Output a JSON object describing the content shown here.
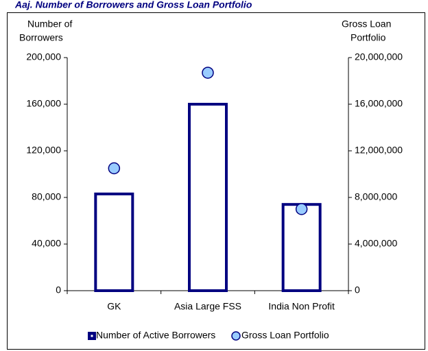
{
  "chart_data": {
    "type": "bar",
    "title": "Aaj. Number of Borrowers and Gross Loan Portfolio",
    "y_label": [
      "Number of",
      "Borrowers"
    ],
    "y2_label": [
      "Gross Loan",
      "Portfolio"
    ],
    "categories": [
      "GK",
      "Asia Large FSS",
      "India Non Profit"
    ],
    "series": [
      {
        "name": "Number of Active Borrowers",
        "type": "bar",
        "color": "#000080",
        "axis": "y",
        "values": [
          83000,
          160000,
          74000
        ]
      },
      {
        "name": "Gross Loan Portfolio",
        "type": "scatter",
        "color": "#99ccff",
        "axis": "y2",
        "values": [
          10500000,
          18700000,
          7000000
        ]
      }
    ],
    "ylim": [
      0,
      200000
    ],
    "yticks": [
      0,
      {
        "value": 40000,
        "label": "40,000"
      },
      {
        "value": 80000,
        "label": "80,000"
      },
      {
        "value": 120000,
        "label": "120,000"
      },
      {
        "value": 160000,
        "label": "160,000"
      },
      {
        "value": 200000,
        "label": "200,000"
      }
    ],
    "y2lim": [
      0,
      20000000
    ],
    "y2ticks": [
      0,
      {
        "value": 4000000,
        "label": "4,000,000"
      },
      {
        "value": 8000000,
        "label": "8,000,000"
      },
      {
        "value": 12000000,
        "label": "12,000,000"
      },
      {
        "value": 16000000,
        "label": "16,000,000"
      },
      {
        "value": 20000000,
        "label": "20,000,000"
      }
    ],
    "legend": "bottom"
  }
}
